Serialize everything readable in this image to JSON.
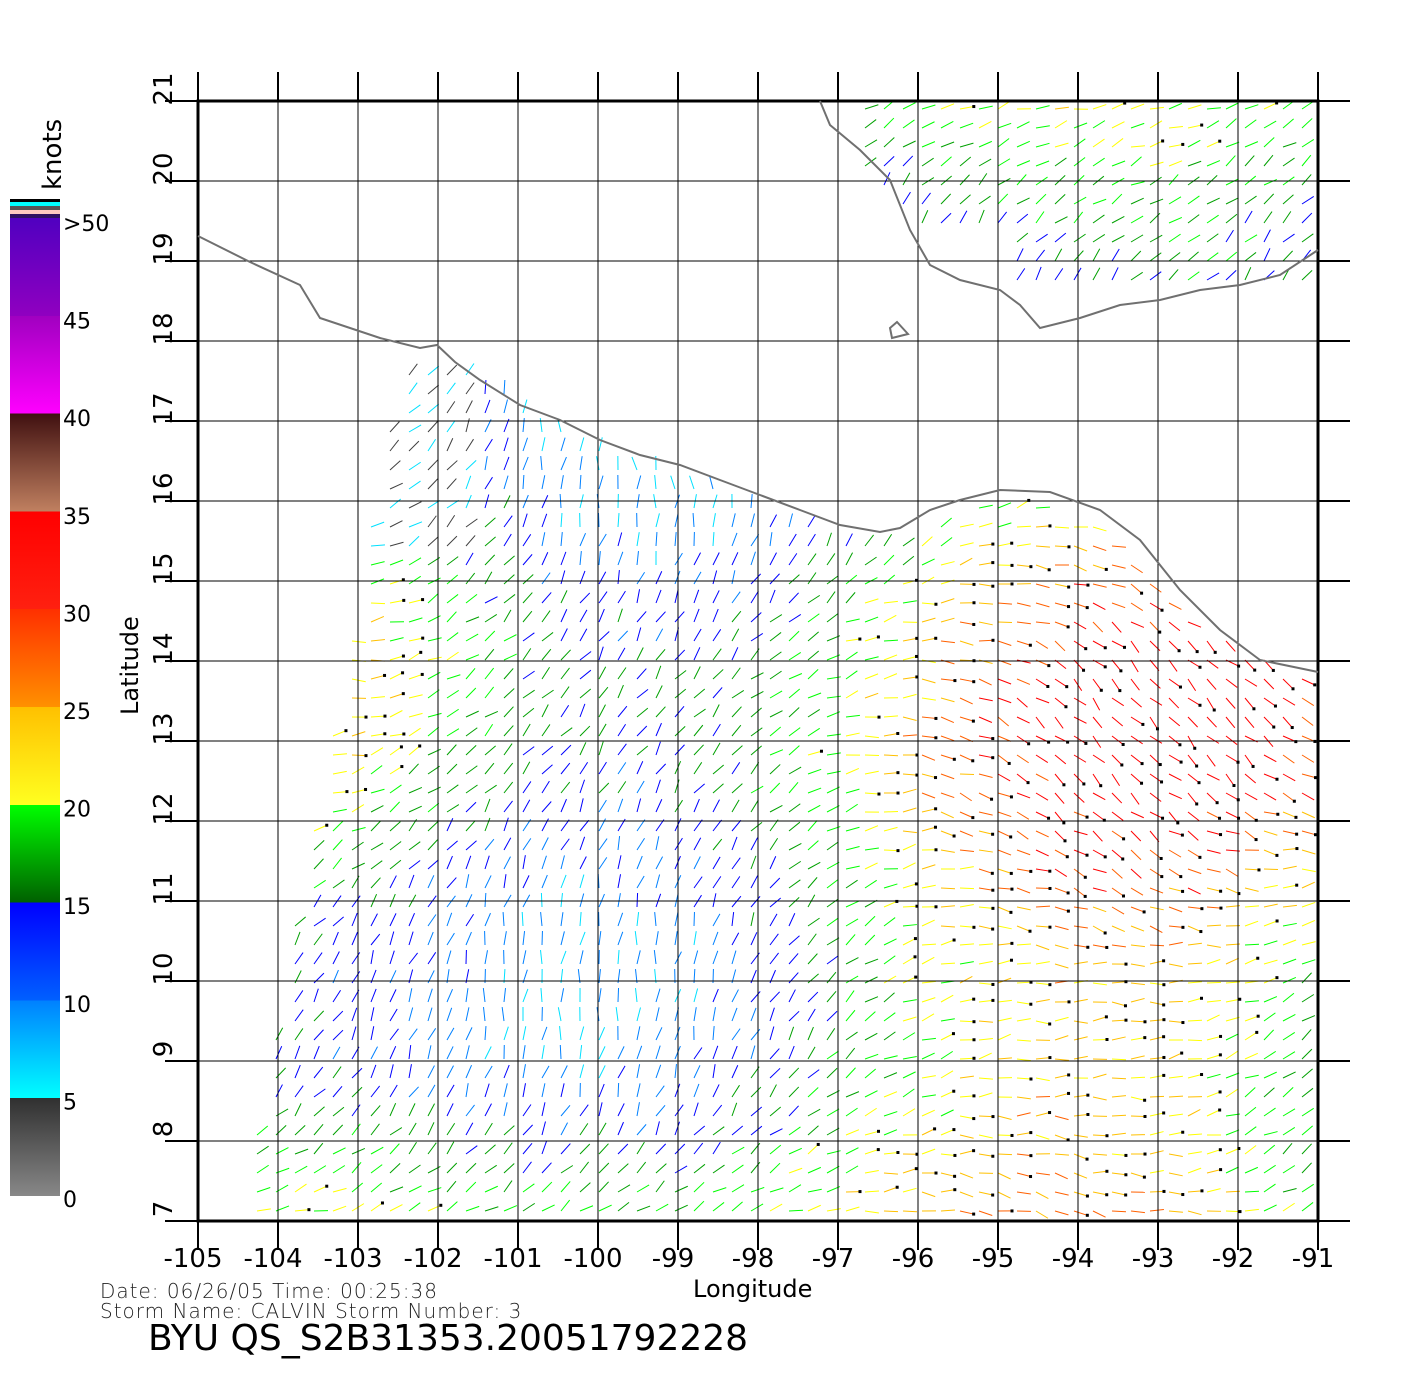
{
  "map": {
    "xlabel": "Longitude",
    "ylabel": "Latitude",
    "lon_range": [
      -105,
      -91
    ],
    "lat_range": [
      7,
      21
    ],
    "lon_ticks": [
      "-105",
      "-104",
      "-103",
      "-102",
      "-101",
      "-100",
      "-99",
      "-98",
      "-97",
      "-96",
      "-95",
      "-94",
      "-93",
      "-92",
      "-91"
    ],
    "lat_ticks": [
      "7",
      "8",
      "9",
      "10",
      "11",
      "12",
      "13",
      "14",
      "15",
      "16",
      "17",
      "18",
      "19",
      "20",
      "21"
    ],
    "grid": true,
    "coast_color": "#707070"
  },
  "colorbar": {
    "unit": "knots",
    "labels": [
      "0",
      "5",
      "10",
      "15",
      "20",
      "25",
      "30",
      "35",
      "40",
      "45",
      ">50"
    ],
    "colors": [
      "#808080",
      "#00ffff",
      "#0080ff",
      "#0000ff",
      "#008000",
      "#00ff00",
      "#ffff00",
      "#ffc000",
      "#ff8000",
      "#ff2000",
      "#ff0000",
      "#c08060",
      "#401010",
      "#ff00ff",
      "#a000c0",
      "#5000c0"
    ]
  },
  "info": {
    "date_line": "Date: 06/26/05   Time: 00:25:38",
    "storm_line": "Storm  Name: CALVIN   Storm  Number: 3",
    "title": "BYU  QS_S2B31353.20051792228"
  }
}
